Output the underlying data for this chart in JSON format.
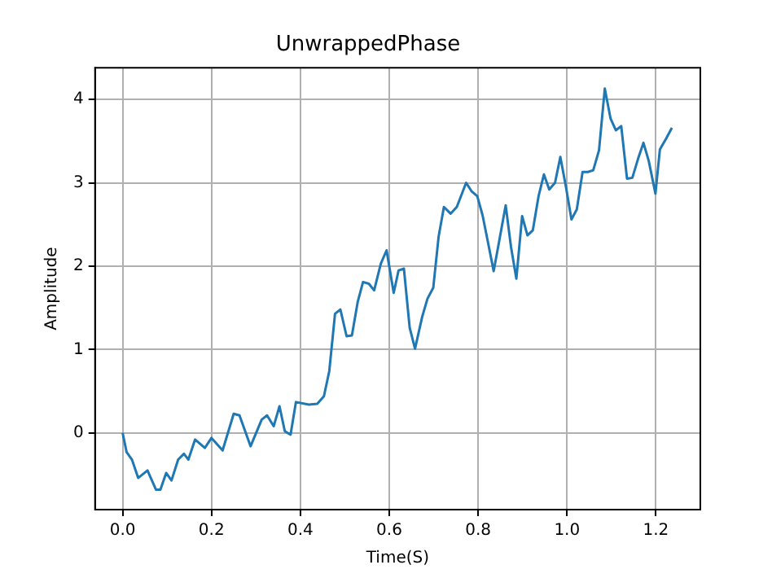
{
  "chart_data": {
    "type": "line",
    "title": "UnwrappedPhase",
    "xlabel": "Time(S)",
    "ylabel": "Amplitude",
    "xlim": [
      -0.062,
      1.3
    ],
    "ylim": [
      -0.92,
      4.38
    ],
    "xticks": [
      {
        "value": 0,
        "label": "0.0"
      },
      {
        "value": 0.2,
        "label": "0.2"
      },
      {
        "value": 0.4,
        "label": "0.4"
      },
      {
        "value": 0.6,
        "label": "0.6"
      },
      {
        "value": 0.8,
        "label": "0.8"
      },
      {
        "value": 1.0,
        "label": "1.0"
      },
      {
        "value": 1.2,
        "label": "1.2"
      }
    ],
    "yticks": [
      0,
      1,
      2,
      3,
      4
    ],
    "grid": true,
    "line_style": "solid",
    "series": [
      {
        "color": "#1f77b4",
        "x": [
          0,
          0.009,
          0.021,
          0.035,
          0.056,
          0.075,
          0.085,
          0.098,
          0.11,
          0.125,
          0.138,
          0.148,
          0.163,
          0.185,
          0.2,
          0.225,
          0.25,
          0.263,
          0.288,
          0.313,
          0.325,
          0.34,
          0.353,
          0.365,
          0.378,
          0.39,
          0.419,
          0.438,
          0.453,
          0.465,
          0.478,
          0.49,
          0.504,
          0.516,
          0.529,
          0.541,
          0.554,
          0.566,
          0.581,
          0.594,
          0.61,
          0.621,
          0.633,
          0.646,
          0.658,
          0.674,
          0.686,
          0.699,
          0.711,
          0.723,
          0.738,
          0.752,
          0.773,
          0.785,
          0.798,
          0.81,
          0.822,
          0.835,
          0.847,
          0.862,
          0.874,
          0.886,
          0.899,
          0.911,
          0.923,
          0.936,
          0.948,
          0.96,
          0.973,
          0.985,
          0.998,
          1.01,
          1.022,
          1.035,
          1.047,
          1.059,
          1.072,
          1.085,
          1.098,
          1.11,
          1.122,
          1.135,
          1.147,
          1.16,
          1.172,
          1.184,
          1.199,
          1.209,
          1.222,
          1.236
        ],
        "values": [
          0,
          -0.23,
          -0.32,
          -0.54,
          -0.45,
          -0.68,
          -0.68,
          -0.48,
          -0.57,
          -0.32,
          -0.25,
          -0.32,
          -0.08,
          -0.18,
          -0.06,
          -0.21,
          0.23,
          0.21,
          -0.16,
          0.16,
          0.21,
          0.08,
          0.32,
          0.02,
          -0.02,
          0.37,
          0.34,
          0.35,
          0.44,
          0.74,
          1.43,
          1.48,
          1.16,
          1.17,
          1.57,
          1.81,
          1.79,
          1.71,
          2.03,
          2.19,
          1.68,
          1.95,
          1.97,
          1.26,
          1.01,
          1.39,
          1.61,
          1.74,
          2.35,
          2.71,
          2.63,
          2.71,
          3.0,
          2.9,
          2.84,
          2.61,
          2.29,
          1.94,
          2.29,
          2.73,
          2.23,
          1.85,
          2.6,
          2.37,
          2.43,
          2.84,
          3.1,
          2.92,
          3.0,
          3.31,
          2.94,
          2.56,
          2.68,
          3.13,
          3.13,
          3.15,
          3.39,
          4.13,
          3.77,
          3.63,
          3.68,
          3.05,
          3.06,
          3.29,
          3.48,
          3.26,
          2.87,
          3.4,
          3.52,
          3.66
        ]
      }
    ]
  }
}
